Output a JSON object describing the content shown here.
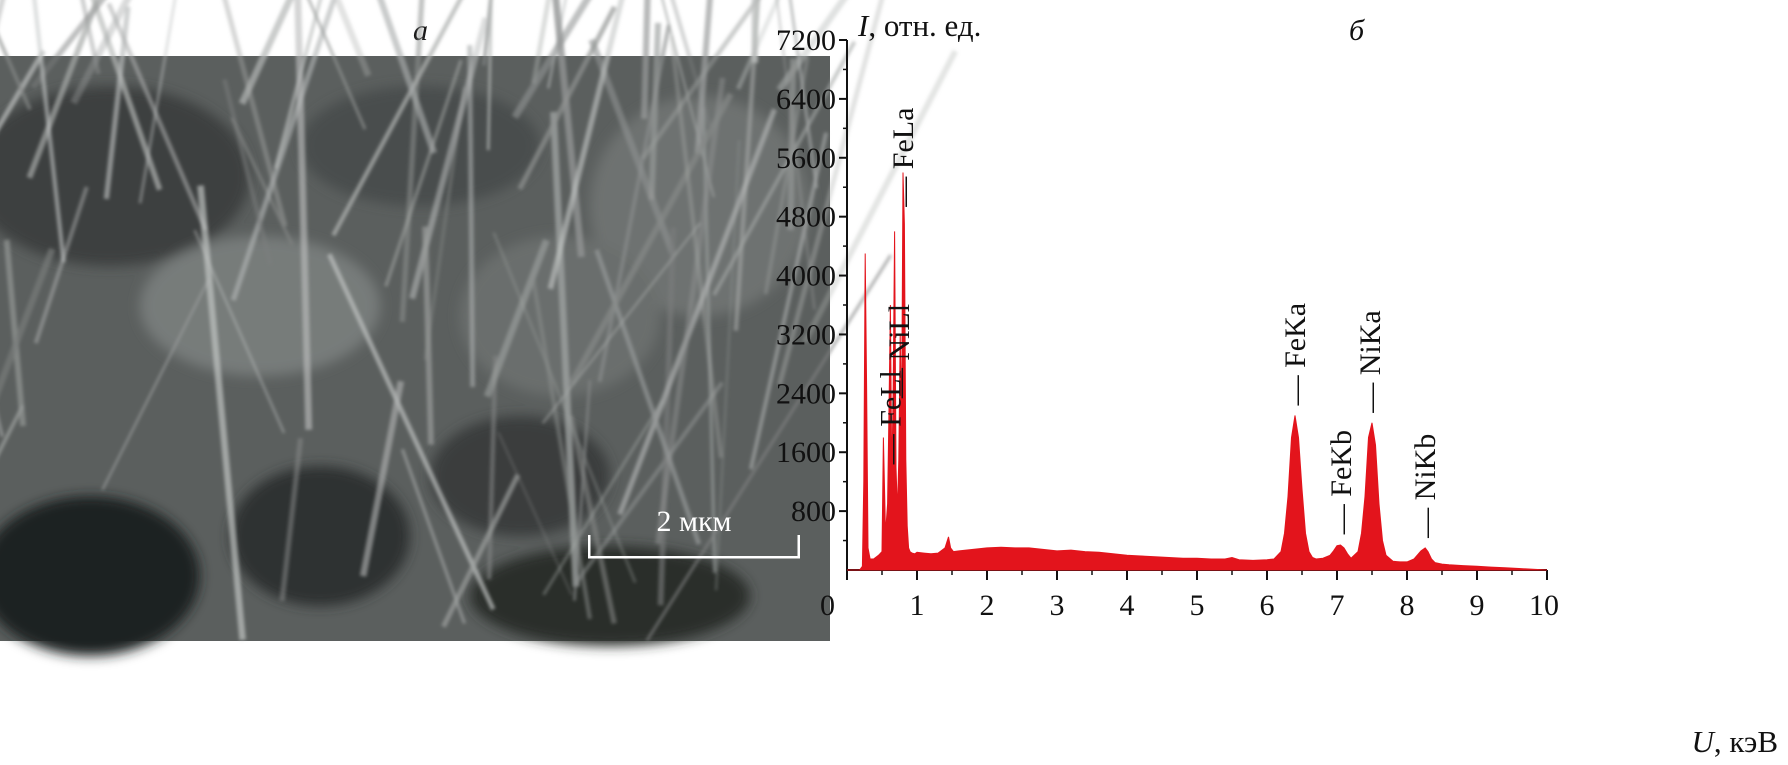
{
  "panel_a": {
    "label": "а",
    "scale_bar": "2 мкм"
  },
  "panel_b": {
    "label": "б"
  },
  "chart_data": {
    "type": "area",
    "ylabel_symbol": "I",
    "ylabel_unit": ", отн. ед.",
    "xlabel_symbol": "U",
    "xlabel_unit": ", кэВ",
    "xlim": [
      0,
      10
    ],
    "ylim": [
      0,
      7200
    ],
    "x_ticks": [
      0,
      1,
      2,
      3,
      4,
      5,
      6,
      7,
      8,
      9,
      10
    ],
    "x_tick_labels": [
      "0",
      "1",
      "2",
      "3",
      "4",
      "5",
      "6",
      "7",
      "8",
      "9",
      "10"
    ],
    "y_ticks": [
      800,
      1600,
      2400,
      3200,
      4000,
      4800,
      5600,
      6400,
      7200
    ],
    "y_tick_labels": [
      "800",
      "1600",
      "2400",
      "3200",
      "4000",
      "4800",
      "5600",
      "6400",
      "7200"
    ],
    "grid": false,
    "fill_color": "#e3141c",
    "peaks": [
      {
        "label": "FeLl",
        "x": 0.62,
        "y": 1300
      },
      {
        "label": "NiLl",
        "x": 0.74,
        "y": 2200
      },
      {
        "label": "FeLa",
        "x": 0.8,
        "y": 4800
      },
      {
        "label": "FeKa",
        "x": 6.4,
        "y": 2100
      },
      {
        "label": "FeKb",
        "x": 7.06,
        "y": 350
      },
      {
        "label": "NiKa",
        "x": 7.47,
        "y": 2000
      },
      {
        "label": "NiKb",
        "x": 8.26,
        "y": 300
      }
    ],
    "spectrum": {
      "x": [
        0,
        0.18,
        0.22,
        0.24,
        0.26,
        0.28,
        0.3,
        0.33,
        0.38,
        0.45,
        0.5,
        0.52,
        0.55,
        0.58,
        0.6,
        0.62,
        0.64,
        0.66,
        0.68,
        0.7,
        0.72,
        0.74,
        0.76,
        0.78,
        0.8,
        0.82,
        0.84,
        0.86,
        0.88,
        0.9,
        0.93,
        0.97,
        1.0,
        1.1,
        1.2,
        1.3,
        1.4,
        1.45,
        1.48,
        1.52,
        1.6,
        1.8,
        2.0,
        2.2,
        2.4,
        2.6,
        2.8,
        3.0,
        3.2,
        3.4,
        3.6,
        3.8,
        4.0,
        4.2,
        4.4,
        4.6,
        4.8,
        5.0,
        5.2,
        5.4,
        5.5,
        5.6,
        5.8,
        6.0,
        6.1,
        6.2,
        6.25,
        6.3,
        6.35,
        6.4,
        6.45,
        6.5,
        6.55,
        6.6,
        6.65,
        6.7,
        6.8,
        6.9,
        6.95,
        7.0,
        7.05,
        7.1,
        7.15,
        7.2,
        7.3,
        7.35,
        7.4,
        7.45,
        7.5,
        7.55,
        7.6,
        7.65,
        7.7,
        7.8,
        7.9,
        8.0,
        8.1,
        8.2,
        8.26,
        8.3,
        8.35,
        8.4,
        8.5,
        8.6,
        8.8,
        9.0,
        9.2,
        9.4,
        9.6,
        9.8,
        10.0
      ],
      "y": [
        0,
        0,
        50,
        1200,
        4300,
        2500,
        300,
        150,
        150,
        200,
        250,
        1800,
        500,
        900,
        2200,
        3600,
        1200,
        2500,
        4600,
        1400,
        800,
        1500,
        3200,
        2000,
        5400,
        4700,
        1500,
        600,
        300,
        250,
        230,
        220,
        240,
        230,
        220,
        230,
        300,
        450,
        300,
        250,
        260,
        280,
        300,
        310,
        300,
        300,
        280,
        260,
        270,
        250,
        240,
        220,
        200,
        190,
        180,
        170,
        160,
        160,
        150,
        150,
        170,
        140,
        130,
        140,
        150,
        250,
        500,
        1000,
        1800,
        2100,
        1800,
        1100,
        500,
        250,
        170,
        150,
        160,
        200,
        260,
        330,
        340,
        300,
        220,
        160,
        250,
        500,
        1000,
        1800,
        2000,
        1700,
        900,
        400,
        200,
        120,
        110,
        110,
        150,
        260,
        300,
        250,
        150,
        100,
        80,
        70,
        60,
        50,
        40,
        30,
        20,
        10,
        0
      ]
    }
  }
}
